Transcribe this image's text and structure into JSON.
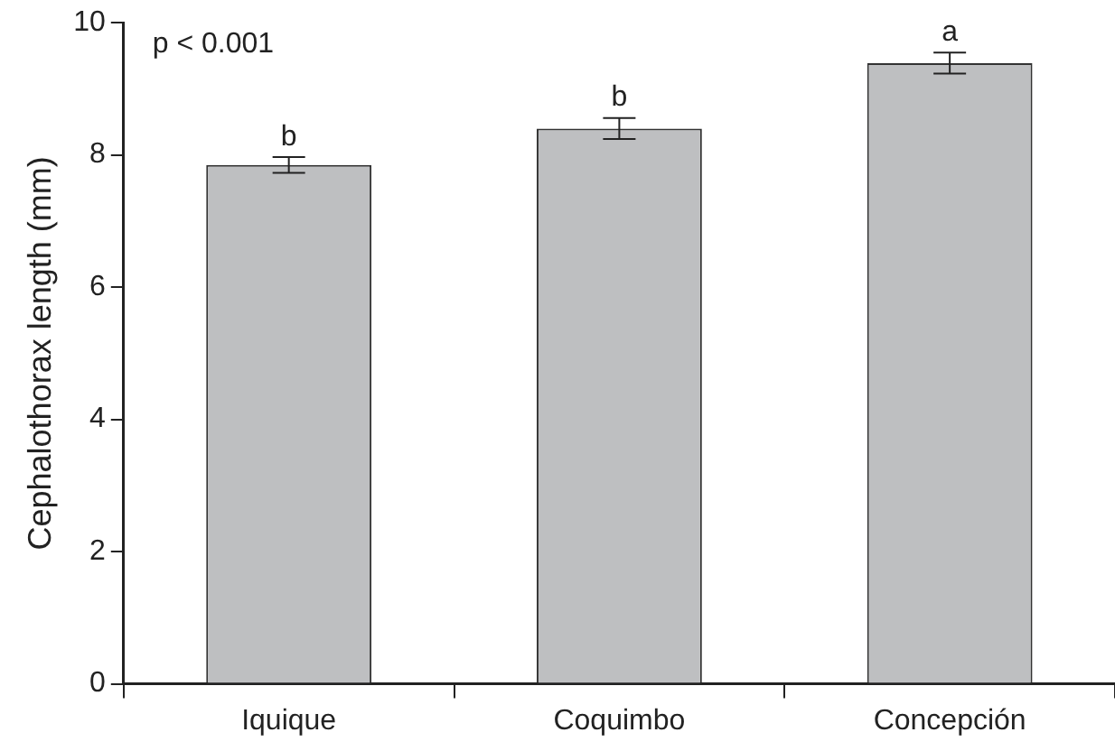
{
  "chart_data": {
    "type": "bar",
    "ylabel": "Cephalothorax length (mm)",
    "categories": [
      "Iquique",
      "Coquimbo",
      "Concepción"
    ],
    "values": [
      7.85,
      8.4,
      9.39
    ],
    "errors": [
      0.12,
      0.16,
      0.16
    ],
    "color": "#bebfc1",
    "ylim": [
      0,
      10
    ],
    "yticks": [
      0,
      2,
      4,
      6,
      8,
      10
    ],
    "grid": false,
    "legend": false,
    "annotations": [
      "p < 0.001",
      {
        "text": "b",
        "x": "Iquique",
        "y": 7.97
      },
      {
        "text": "b",
        "x": "Coquimbo",
        "y": 8.56
      },
      {
        "text": "a",
        "x": "Concepción",
        "y": 9.55
      }
    ]
  }
}
